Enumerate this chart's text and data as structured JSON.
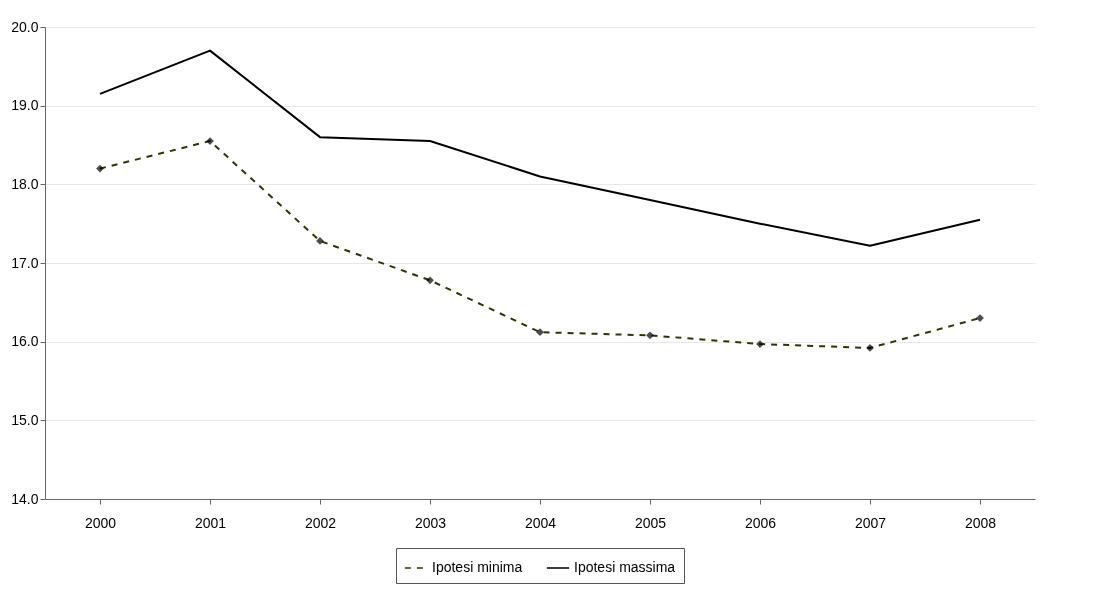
{
  "chart_data": {
    "type": "line",
    "categories": [
      "2000",
      "2001",
      "2002",
      "2003",
      "2004",
      "2005",
      "2006",
      "2007",
      "2008"
    ],
    "series": [
      {
        "name": "Ipotesi minima",
        "color": "#333300",
        "line_style": "dashed",
        "marker": "diamond",
        "values": [
          18.2,
          18.55,
          17.28,
          16.78,
          16.12,
          16.08,
          15.97,
          15.92,
          16.3
        ]
      },
      {
        "name": "Ipotesi massima",
        "color": "#000000",
        "line_style": "solid",
        "marker": "none",
        "values": [
          19.15,
          19.7,
          18.6,
          18.55,
          18.1,
          17.8,
          17.5,
          17.22,
          17.55
        ]
      }
    ],
    "ylim": [
      14,
      20
    ],
    "yticks": [
      {
        "value": 14,
        "label": "14.0"
      },
      {
        "value": 15,
        "label": "15.0"
      },
      {
        "value": 16,
        "label": "16.0"
      },
      {
        "value": 17,
        "label": "17.0"
      },
      {
        "value": 18,
        "label": "18.0"
      },
      {
        "value": 19,
        "label": "19.0"
      },
      {
        "value": 20,
        "label": "20.0"
      }
    ],
    "grid": "y",
    "legend": "bottom"
  }
}
